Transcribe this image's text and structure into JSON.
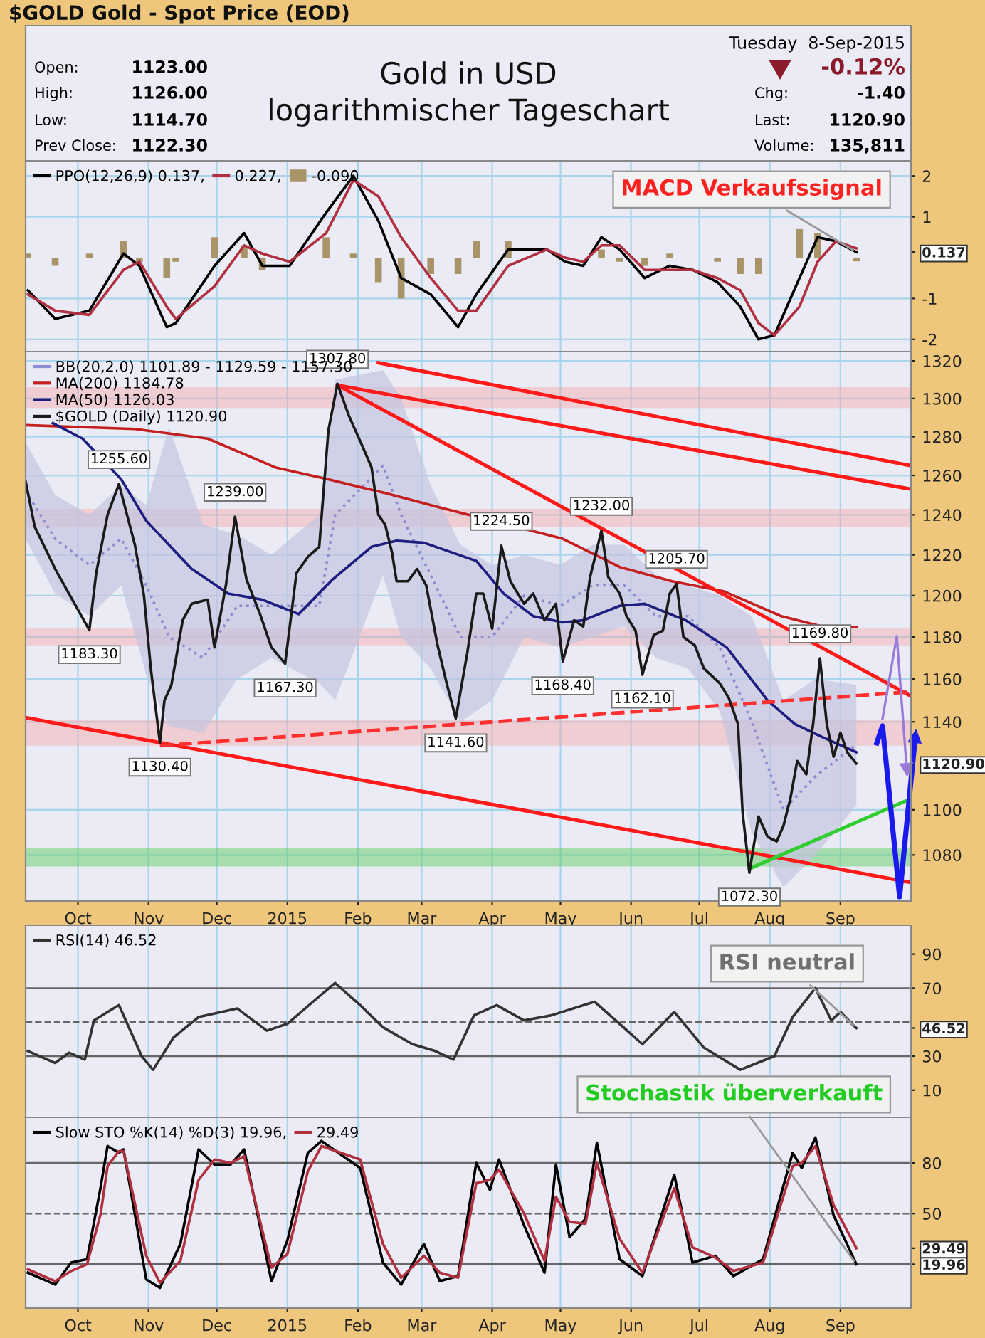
{
  "chart_data": [
    {
      "type": "line",
      "title": "Gold in USD\nlogarithmischer Tageschart",
      "subtitle": "$GOLD Gold - Spot Price (EOD)",
      "annotations": [
        "Open:",
        "1123.00",
        "High:",
        "1126.00",
        "Low:",
        "1114.70",
        "Prev Close:",
        "1122.30",
        "Tuesday  8-Sep-2015",
        "-0.12%",
        "Chg:",
        "-1.40",
        "Last:",
        "1120.90",
        "Volume:",
        "135,811",
        {
          "text": "MACD Verkaufssignal",
          "x": "2015-09-08",
          "y": 0.137
        }
      ],
      "xlim": [
        "2014-09-08",
        "2015-10-02"
      ],
      "xticks": [
        {
          "value": "2014-10-01",
          "label": null
        },
        {
          "value": "2014-11-01",
          "label": null
        },
        {
          "value": "2014-12-01",
          "label": null
        },
        {
          "value": "2015-01-01",
          "label": null
        },
        {
          "value": "2015-02-01",
          "label": null
        },
        {
          "value": "2015-03-01",
          "label": null
        },
        {
          "value": "2015-04-01",
          "label": null
        },
        {
          "value": "2015-05-01",
          "label": null
        },
        {
          "value": "2015-06-01",
          "label": null
        },
        {
          "value": "2015-07-01",
          "label": null
        },
        {
          "value": "2015-08-01",
          "label": null
        },
        {
          "value": "2015-09-01",
          "label": null
        }
      ],
      "ylim": [
        -2.3,
        2.37
      ],
      "yticks": [
        -2,
        -1,
        {
          "value": 0.137,
          "label": "0.137"
        },
        1,
        2
      ],
      "grid": true,
      "tick_labels": "y",
      "legend": "top left",
      "x": [
        "2014-09-09",
        "2014-09-21",
        "2014-10-06",
        "2014-10-21",
        "2014-10-28",
        "2014-11-09",
        "2014-11-13",
        "2014-11-30",
        "2014-12-13",
        "2014-12-21",
        "2015-01-02",
        "2015-01-18",
        "2015-01-30",
        "2015-02-10",
        "2015-02-20",
        "2015-03-05",
        "2015-03-17",
        "2015-03-25",
        "2015-04-08",
        "2015-04-25",
        "2015-05-03",
        "2015-05-11",
        "2015-05-19",
        "2015-05-27",
        "2015-06-07",
        "2015-06-18",
        "2015-06-28",
        "2015-07-09",
        "2015-07-19",
        "2015-07-27",
        "2015-08-03",
        "2015-08-14",
        "2015-08-22",
        "2015-08-30",
        "2015-09-08"
      ],
      "series": [
        {
          "name": "PPO(12,26,9) 0.137,",
          "color": "#000000",
          "values": [
            -0.8,
            -1.5,
            -1.3,
            0.1,
            -0.2,
            -1.7,
            -1.6,
            -0.2,
            0.6,
            -0.2,
            -0.2,
            1.1,
            2.0,
            0.9,
            -0.5,
            -0.9,
            -1.7,
            -0.9,
            0.2,
            0.2,
            -0.1,
            -0.2,
            0.5,
            0.2,
            -0.5,
            -0.2,
            -0.3,
            -0.6,
            -1.2,
            -2.0,
            -1.9,
            -0.5,
            0.5,
            0.4,
            0.137
          ]
        },
        {
          "name": "0.227,",
          "color": "#b03040",
          "values": [
            -0.9,
            -1.3,
            -1.4,
            -0.3,
            -0.1,
            -1.2,
            -1.5,
            -0.7,
            0.3,
            0.1,
            -0.1,
            0.6,
            1.9,
            1.5,
            0.5,
            -0.5,
            -1.3,
            -1.3,
            -0.2,
            0.2,
            0.0,
            -0.1,
            0.3,
            0.3,
            -0.3,
            -0.3,
            -0.3,
            -0.5,
            -0.8,
            -1.6,
            -1.9,
            -1.2,
            -0.1,
            0.4,
            0.227
          ]
        },
        {
          "name": "-0.090",
          "type": "bar",
          "color": "#a89468",
          "values": [
            0.1,
            -0.2,
            0.1,
            0.4,
            -0.1,
            -0.5,
            -0.1,
            0.5,
            0.3,
            -0.3,
            null,
            0.5,
            0.1,
            -0.6,
            -1.0,
            -0.4,
            -0.4,
            0.4,
            0.4,
            0.0,
            null,
            null,
            0.2,
            -0.1,
            -0.2,
            0.1,
            0.0,
            -0.1,
            -0.4,
            -0.4,
            0.0,
            0.7,
            0.6,
            0.0,
            -0.09
          ]
        }
      ]
    },
    {
      "type": "line",
      "log": "y",
      "xlim": [
        "2014-09-08",
        "2015-10-02"
      ],
      "xticks": [
        {
          "value": "2014-10-01",
          "label": "Oct"
        },
        {
          "value": "2014-11-01",
          "label": "Nov"
        },
        {
          "value": "2014-12-01",
          "label": "Dec"
        },
        {
          "value": "2015-01-01",
          "label": "2015"
        },
        {
          "value": "2015-02-01",
          "label": "Feb"
        },
        {
          "value": "2015-03-01",
          "label": "Mar"
        },
        {
          "value": "2015-04-01",
          "label": "Apr"
        },
        {
          "value": "2015-05-01",
          "label": "May"
        },
        {
          "value": "2015-06-01",
          "label": "Jun"
        },
        {
          "value": "2015-07-01",
          "label": "Jul"
        },
        {
          "value": "2015-08-01",
          "label": "Aug"
        },
        {
          "value": "2015-09-01",
          "label": "Sep"
        }
      ],
      "ylim": [
        1060,
        1325
      ],
      "yticks": [
        1080,
        1100,
        {
          "value": 1120.9,
          "label": "1120.90"
        },
        1140,
        1160,
        1180,
        1200,
        1220,
        1240,
        1260,
        1280,
        1300,
        1320
      ],
      "grid": true,
      "legend": "top left",
      "bands": [
        {
          "axis": "y",
          "from": 1295,
          "to": 1306,
          "color": "#f4a8a8"
        },
        {
          "axis": "y",
          "from": 1234,
          "to": 1243,
          "color": "#f4a8a8"
        },
        {
          "axis": "y",
          "from": 1176,
          "to": 1184,
          "color": "#f4a8a8"
        },
        {
          "axis": "y",
          "from": 1129,
          "to": 1141,
          "color": "#f4a8a8"
        },
        {
          "axis": "y",
          "from": 1075,
          "to": 1083,
          "color": "#55cc55"
        }
      ],
      "series": [
        {
          "name": "BB(20,2.0) 1101.89 - 1129.59 - 1157.30",
          "color": "#8c8cd0",
          "line_style": "dotted",
          "x": [
            "2014-09-08",
            "2014-09-21",
            "2014-10-06",
            "2014-10-20",
            "2014-10-31",
            "2014-11-10",
            "2014-11-25",
            "2014-12-10",
            "2014-12-25",
            "2015-01-15",
            "2015-01-22",
            "2015-02-12",
            "2015-02-20",
            "2015-03-05",
            "2015-03-18",
            "2015-04-01",
            "2015-04-15",
            "2015-05-01",
            "2015-05-15",
            "2015-05-29",
            "2015-06-12",
            "2015-06-26",
            "2015-07-10",
            "2015-07-24",
            "2015-08-07",
            "2015-08-21",
            "2015-09-08"
          ],
          "values": [
            1252,
            1228,
            1215,
            1228,
            1205,
            1180,
            1170,
            1195,
            1195,
            1195,
            1240,
            1265,
            1240,
            1210,
            1180,
            1180,
            1200,
            1195,
            1205,
            1205,
            1190,
            1190,
            1175,
            1140,
            1100,
            1115,
            1129.59
          ],
          "lower": [
            1228,
            1201,
            1190,
            1205,
            1162,
            1138,
            1135,
            1160,
            1170,
            1158,
            1150,
            1210,
            1180,
            1165,
            1140,
            1150,
            1180,
            1175,
            1180,
            1185,
            1170,
            1165,
            1145,
            1090,
            1066,
            1080,
            1101.89
          ],
          "upper": [
            1277,
            1250,
            1240,
            1255,
            1245,
            1285,
            1235,
            1230,
            1220,
            1240,
            1310,
            1315,
            1300,
            1255,
            1225,
            1215,
            1220,
            1215,
            1225,
            1225,
            1210,
            1205,
            1200,
            1190,
            1150,
            1160,
            1157.3
          ]
        },
        {
          "name": "MA(200) 1184.78",
          "color": "#c41e1e",
          "x": [
            "2014-09-08",
            "2014-10-26",
            "2014-11-27",
            "2014-12-27",
            "2015-01-19",
            "2015-02-13",
            "2015-03-08",
            "2015-05-02",
            "2015-05-27",
            "2015-06-19",
            "2015-07-12",
            "2015-08-06",
            "2015-08-24",
            "2015-09-08"
          ],
          "values": [
            1286,
            1284,
            1279,
            1264,
            1258,
            1251,
            1244,
            1228,
            1214,
            1207,
            1202,
            1190,
            1185,
            1184.78
          ]
        },
        {
          "name": "MA(50) 1126.03",
          "color": "#1e1e80",
          "x": [
            "2014-09-20",
            "2014-10-03",
            "2014-10-20",
            "2014-10-31",
            "2014-11-20",
            "2014-12-06",
            "2014-12-21",
            "2015-01-06",
            "2015-01-21",
            "2015-02-07",
            "2015-02-18",
            "2015-03-02",
            "2015-03-25",
            "2015-04-06",
            "2015-04-19",
            "2015-05-02",
            "2015-05-11",
            "2015-05-27",
            "2015-06-07",
            "2015-06-25",
            "2015-07-13",
            "2015-07-31",
            "2015-08-12",
            "2015-08-24",
            "2015-09-08"
          ],
          "values": [
            1287,
            1279,
            1258,
            1237,
            1213,
            1201,
            1198,
            1191,
            1208,
            1224,
            1227,
            1226,
            1217,
            1201,
            1190,
            1187,
            1188,
            1195,
            1196,
            1188,
            1175,
            1150,
            1139,
            1133,
            1126.03
          ]
        },
        {
          "color": "#ff1a1a",
          "x": [
            "2015-02-10",
            "2015-10-02"
          ],
          "values": [
            1319,
            1265
          ]
        },
        {
          "color": "#ff1a1a",
          "x": [
            "2015-01-23",
            "2015-10-02"
          ],
          "values": [
            1307,
            1253
          ]
        },
        {
          "color": "#ff1a1a",
          "x": [
            "2015-01-23",
            "2015-10-02"
          ],
          "values": [
            1307,
            1152
          ]
        },
        {
          "color": "#ff1a1a",
          "x": [
            "2014-09-08",
            "2015-10-02"
          ],
          "values": [
            1142,
            1068
          ]
        },
        {
          "color": "#ff3030",
          "line_style": "dashed",
          "x": [
            "2014-11-06",
            "2015-10-02"
          ],
          "values": [
            1129,
            1154
          ]
        },
        {
          "color": "#33cc33",
          "x": [
            "2015-07-23",
            "2015-10-02"
          ],
          "values": [
            1074,
            1105
          ]
        },
        {
          "name": "$GOLD (Daily) 1120.90",
          "color": "#1a1a1a",
          "x": [
            "2014-09-08",
            "2014-09-12",
            "2014-09-21",
            "2014-10-06",
            "2014-10-09",
            "2014-10-14",
            "2014-10-19",
            "2014-10-26",
            "2014-10-30",
            "2014-11-02",
            "2014-11-06",
            "2014-11-08",
            "2014-11-11",
            "2014-11-16",
            "2014-11-20",
            "2014-11-27",
            "2014-11-30",
            "2014-12-05",
            "2014-12-09",
            "2014-12-14",
            "2014-12-20",
            "2014-12-25",
            "2014-12-31",
            "2015-01-05",
            "2015-01-10",
            "2015-01-15",
            "2015-01-19",
            "2015-01-23",
            "2015-01-28",
            "2015-02-03",
            "2015-02-07",
            "2015-02-10",
            "2015-02-13",
            "2015-02-16",
            "2015-02-18",
            "2015-02-23",
            "2015-02-27",
            "2015-03-03",
            "2015-03-08",
            "2015-03-12",
            "2015-03-16",
            "2015-03-21",
            "2015-03-25",
            "2015-03-28",
            "2015-04-01",
            "2015-04-05",
            "2015-04-09",
            "2015-04-15",
            "2015-04-19",
            "2015-04-24",
            "2015-04-29",
            "2015-05-02",
            "2015-05-07",
            "2015-05-11",
            "2015-05-14",
            "2015-05-19",
            "2015-05-22",
            "2015-05-27",
            "2015-05-30",
            "2015-06-03",
            "2015-06-06",
            "2015-06-11",
            "2015-06-15",
            "2015-06-18",
            "2015-06-21",
            "2015-06-24",
            "2015-06-29",
            "2015-07-03",
            "2015-07-06",
            "2015-07-10",
            "2015-07-14",
            "2015-07-18",
            "2015-07-20",
            "2015-07-23",
            "2015-07-27",
            "2015-07-31",
            "2015-08-04",
            "2015-08-07",
            "2015-08-10",
            "2015-08-13",
            "2015-08-17",
            "2015-08-20",
            "2015-08-23",
            "2015-08-26",
            "2015-08-29",
            "2015-09-01",
            "2015-09-04",
            "2015-09-08"
          ],
          "values": [
            1257,
            1234,
            1213,
            1183.3,
            1211,
            1240,
            1255.6,
            1225,
            1200,
            1165,
            1130.4,
            1150,
            1157,
            1188,
            1196,
            1198,
            1175,
            1205,
            1239.0,
            1208,
            1191,
            1175,
            1167.3,
            1211,
            1219,
            1224,
            1283,
            1307.8,
            1291,
            1275,
            1264,
            1240,
            1235,
            1221,
            1207,
            1207,
            1213,
            1205,
            1176,
            1158,
            1141.6,
            1172,
            1201,
            1201,
            1184,
            1224.5,
            1207,
            1196,
            1201,
            1188,
            1196,
            1168.4,
            1188,
            1185,
            1209,
            1232.0,
            1209,
            1201,
            1190,
            1183,
            1162.1,
            1181,
            1183,
            1201,
            1205.7,
            1180,
            1176,
            1165,
            1162,
            1158,
            1151,
            1139,
            1099,
            1072.3,
            1097,
            1088,
            1086,
            1093,
            1105,
            1122,
            1116,
            1139,
            1169.8,
            1139,
            1124,
            1135,
            1126,
            1120.9
          ],
          "value_labels": [
            null,
            null,
            null,
            "1183.30",
            null,
            null,
            "1255.60",
            null,
            null,
            null,
            "1130.40",
            null,
            null,
            null,
            null,
            null,
            null,
            null,
            "1239.00",
            null,
            null,
            null,
            "1167.30",
            null,
            null,
            null,
            null,
            "1307.80",
            null,
            null,
            null,
            null,
            null,
            null,
            null,
            null,
            null,
            null,
            null,
            null,
            "1141.60",
            null,
            null,
            null,
            null,
            "1224.50",
            null,
            null,
            null,
            null,
            null,
            "1168.40",
            null,
            null,
            null,
            "1232.00",
            null,
            null,
            null,
            null,
            "1162.10",
            null,
            null,
            null,
            "1205.70",
            null,
            null,
            null,
            null,
            null,
            null,
            null,
            null,
            "1072.30",
            null,
            null,
            null,
            null,
            null,
            null,
            null,
            null,
            "1169.80",
            null,
            null,
            null,
            null,
            null
          ]
        }
      ]
    },
    {
      "type": "line",
      "annotations": [
        {
          "text": "RSI neutral",
          "x": "2015-09-08",
          "y": 46.52
        }
      ],
      "xlim": [
        "2014-09-08",
        "2015-10-02"
      ],
      "xticks": [
        {
          "value": "2014-10-01",
          "label": null
        },
        {
          "value": "2014-11-01",
          "label": null
        },
        {
          "value": "2014-12-01",
          "label": null
        },
        {
          "value": "2015-01-01",
          "label": null
        },
        {
          "value": "2015-02-01",
          "label": null
        },
        {
          "value": "2015-03-01",
          "label": null
        },
        {
          "value": "2015-04-01",
          "label": null
        },
        {
          "value": "2015-05-01",
          "label": null
        },
        {
          "value": "2015-06-01",
          "label": null
        },
        {
          "value": "2015-07-01",
          "label": null
        },
        {
          "value": "2015-08-01",
          "label": null
        },
        {
          "value": "2015-09-01",
          "label": null
        }
      ],
      "ylim": [
        -6,
        107
      ],
      "yticks": [
        10,
        30,
        {
          "value": 46.52,
          "label": "46.52"
        },
        70,
        90
      ],
      "grid": "x",
      "tick_labels": "y",
      "legend": "top left",
      "ref_lines": [
        {
          "axis": "y",
          "value": 70,
          "color": "#666666"
        },
        {
          "axis": "y",
          "value": 30,
          "color": "#666666"
        },
        {
          "axis": "y",
          "value": 50,
          "color": "#666666",
          "line_style": "dashed"
        }
      ],
      "x": [
        "2014-09-09",
        "2014-09-21",
        "2014-09-27",
        "2014-10-04",
        "2014-10-08",
        "2014-10-19",
        "2014-10-29",
        "2014-11-03",
        "2014-11-12",
        "2014-11-23",
        "2014-12-10",
        "2014-12-23",
        "2015-01-01",
        "2015-01-14",
        "2015-01-22",
        "2015-02-02",
        "2015-02-12",
        "2015-02-25",
        "2015-03-07",
        "2015-03-15",
        "2015-03-24",
        "2015-04-03",
        "2015-04-15",
        "2015-04-27",
        "2015-05-16",
        "2015-05-27",
        "2015-06-06",
        "2015-06-20",
        "2015-07-03",
        "2015-07-19",
        "2015-08-03",
        "2015-08-11",
        "2015-08-21",
        "2015-08-28",
        "2015-09-01",
        "2015-09-06",
        "2015-09-08"
      ],
      "series": [
        {
          "name": "RSI(14) 46.52",
          "color": "#333333",
          "values": [
            33,
            26,
            32,
            28,
            51,
            60,
            30,
            22,
            41,
            53,
            58,
            45,
            49,
            64,
            73,
            60,
            47,
            37,
            33,
            28,
            54,
            60,
            51,
            54,
            62,
            49,
            37,
            56,
            35,
            22,
            30,
            53,
            70,
            51,
            56,
            49,
            46.52
          ]
        }
      ]
    },
    {
      "type": "line",
      "annotations": [
        {
          "text": "Stochastik überverkauft",
          "x": "2015-09-08",
          "y": 19.96
        }
      ],
      "xlim": [
        "2014-09-08",
        "2015-10-02"
      ],
      "xticks": [
        {
          "value": "2014-10-01",
          "label": "Oct"
        },
        {
          "value": "2014-11-01",
          "label": "Nov"
        },
        {
          "value": "2014-12-01",
          "label": "Dec"
        },
        {
          "value": "2015-01-01",
          "label": "2015"
        },
        {
          "value": "2015-02-01",
          "label": "Feb"
        },
        {
          "value": "2015-03-01",
          "label": "Mar"
        },
        {
          "value": "2015-04-01",
          "label": "Apr"
        },
        {
          "value": "2015-05-01",
          "label": "May"
        },
        {
          "value": "2015-06-01",
          "label": "Jun"
        },
        {
          "value": "2015-07-01",
          "label": "Jul"
        },
        {
          "value": "2015-08-01",
          "label": "Aug"
        },
        {
          "value": "2015-09-01",
          "label": "Sep"
        }
      ],
      "ylim": [
        -6,
        107
      ],
      "yticks": [
        {
          "value": 19.96,
          "label": "19.96"
        },
        {
          "value": 29.49,
          "label": "29.49"
        },
        50,
        80
      ],
      "grid": "x",
      "legend": "top left",
      "ref_lines": [
        {
          "axis": "y",
          "value": 80,
          "color": "#666666"
        },
        {
          "axis": "y",
          "value": 20,
          "color": "#666666"
        },
        {
          "axis": "y",
          "value": 50,
          "color": "#666666",
          "line_style": "dashed"
        }
      ],
      "x": [
        "2014-09-09",
        "2014-09-21",
        "2014-09-28",
        "2014-10-05",
        "2014-10-11",
        "2014-10-14",
        "2014-10-19",
        "2014-10-21",
        "2014-10-31",
        "2014-11-06",
        "2014-11-15",
        "2014-11-23",
        "2014-11-30",
        "2014-12-07",
        "2014-12-13",
        "2014-12-25",
        "2015-01-01",
        "2015-01-10",
        "2015-01-16",
        "2015-02-02",
        "2015-02-12",
        "2015-02-20",
        "2015-03-02",
        "2015-03-09",
        "2015-03-17",
        "2015-03-25",
        "2015-03-31",
        "2015-04-04",
        "2015-04-15",
        "2015-04-24",
        "2015-04-29",
        "2015-05-05",
        "2015-05-12",
        "2015-05-17",
        "2015-05-27",
        "2015-06-06",
        "2015-06-20",
        "2015-06-28",
        "2015-07-08",
        "2015-07-16",
        "2015-07-29",
        "2015-08-11",
        "2015-08-15",
        "2015-08-21",
        "2015-08-29",
        "2015-09-08"
      ],
      "series": [
        {
          "name": "Slow STO %K(14) %D(3) 19.96,",
          "color": "#000000",
          "values": [
            15,
            8,
            21,
            23,
            66,
            90,
            86,
            88,
            11,
            6,
            32,
            88,
            79,
            79,
            88,
            10,
            34,
            86,
            93,
            77,
            21,
            8,
            32,
            10,
            13,
            80,
            64,
            82,
            43,
            15,
            79,
            36,
            47,
            92,
            23,
            13,
            73,
            21,
            25,
            13,
            23,
            86,
            77,
            95,
            49,
            19.96
          ]
        },
        {
          "name": "29.49",
          "color": "#b03040",
          "values": [
            17,
            10,
            16,
            20,
            50,
            78,
            87,
            87,
            25,
            9,
            22,
            70,
            82,
            80,
            84,
            18,
            26,
            75,
            90,
            82,
            32,
            12,
            25,
            15,
            12,
            68,
            70,
            76,
            50,
            22,
            60,
            45,
            44,
            80,
            35,
            15,
            65,
            30,
            24,
            16,
            21,
            78,
            80,
            90,
            55,
            29.49
          ]
        }
      ]
    }
  ]
}
